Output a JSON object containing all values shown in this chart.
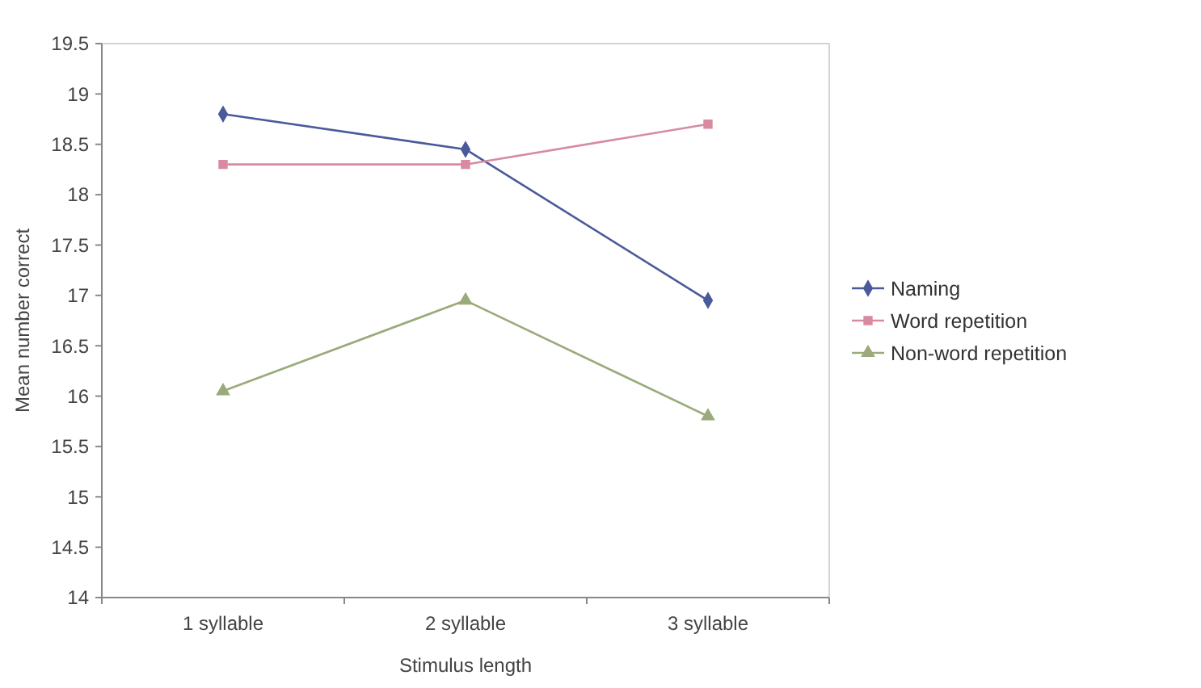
{
  "chart_data": {
    "type": "line",
    "xlabel": "Stimulus length",
    "ylabel": "Mean number correct",
    "categories": [
      "1 syllable",
      "2 syllable",
      "3 syllable"
    ],
    "series": [
      {
        "name": "Naming",
        "color": "#4a5a9a",
        "marker": "diamond",
        "values": [
          18.8,
          18.45,
          16.95
        ]
      },
      {
        "name": "Word repetition",
        "color": "#d98aa0",
        "marker": "square",
        "values": [
          18.3,
          18.3,
          18.7
        ]
      },
      {
        "name": "Non-word repetition",
        "color": "#9aaa7a",
        "marker": "triangle",
        "values": [
          16.05,
          16.95,
          15.8
        ]
      }
    ],
    "ylim": [
      14,
      19.5
    ],
    "yticks": [
      14,
      14.5,
      15,
      15.5,
      16,
      16.5,
      17,
      17.5,
      18,
      18.5,
      19,
      19.5
    ],
    "grid": false,
    "legend": "right",
    "line_style": "solid"
  }
}
